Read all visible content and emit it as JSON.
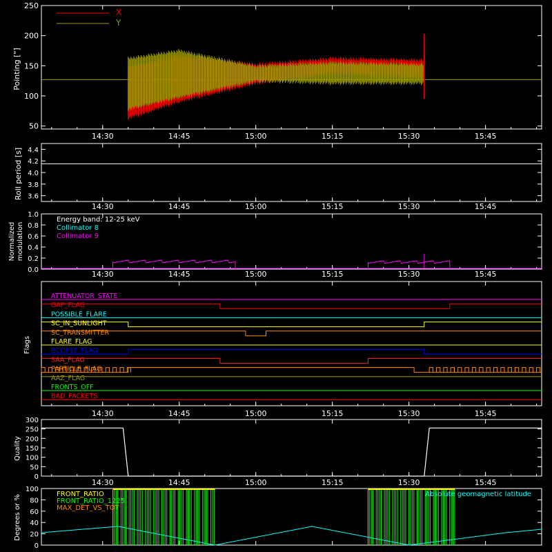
{
  "colors": {
    "axis": "#ffffff",
    "red": "#ff0000",
    "olive": "#999900",
    "magenta": "#ff00ff",
    "cyan": "#00ffff",
    "yellow": "#ffff00",
    "orange": "#ff8800",
    "green": "#00ff00",
    "blue": "#0000ff",
    "brightred": "#ff2222"
  },
  "time_axis": {
    "range": [
      "14:18",
      "15:56"
    ],
    "ticks": [
      "14:30",
      "14:45",
      "15:00",
      "15:15",
      "15:30",
      "15:45"
    ]
  },
  "chart_data": [
    {
      "type": "line",
      "id": "pointing",
      "ylabel": "Pointing [\"]",
      "ylim": [
        45,
        250
      ],
      "yticks": [
        "50",
        "100",
        "150",
        "200",
        "250"
      ],
      "legend": [
        {
          "name": "X",
          "color": "#ff0000"
        },
        {
          "name": "Y",
          "color": "#999900"
        }
      ],
      "baseline": 127,
      "series": [
        {
          "name": "X",
          "color": "#ff0000",
          "x": [
            "14:35",
            "14:45",
            "15:00",
            "15:15",
            "15:33"
          ],
          "upper": [
            150,
            170,
            155,
            165,
            162
          ],
          "lower": [
            60,
            88,
            118,
            135,
            128
          ]
        },
        {
          "name": "Y",
          "color": "#999900",
          "x": [
            "14:35",
            "14:45",
            "15:00",
            "15:15",
            "15:33"
          ],
          "upper": [
            165,
            178,
            152,
            158,
            155
          ],
          "lower": [
            75,
            95,
            122,
            118,
            118
          ]
        }
      ],
      "spike": {
        "time": "15:33",
        "low": 95,
        "high": 203
      }
    },
    {
      "type": "line",
      "id": "roll-period",
      "ylabel": "Roll period [s]",
      "ylim": [
        3.5,
        4.5
      ],
      "yticks": [
        "3.6",
        "3.8",
        "4.0",
        "4.2",
        "4.4"
      ],
      "series": [
        {
          "name": "roll",
          "color": "#ffffff",
          "x": [
            "14:18",
            "15:56"
          ],
          "y": [
            4.15,
            4.15
          ]
        }
      ]
    },
    {
      "type": "line",
      "id": "modulation",
      "ylabel": [
        "Normalized",
        "modulation"
      ],
      "ylim": [
        0,
        1.0
      ],
      "yticks": [
        "0.0",
        "0.2",
        "0.4",
        "0.6",
        "0.8",
        "1.0"
      ],
      "annotations": [
        {
          "text": "Energy band: 12-25 keV",
          "color": "#ffffff"
        },
        {
          "text": "Collimator 8",
          "color": "#00ffff"
        },
        {
          "text": "Collimator 9",
          "color": "#ff00ff"
        }
      ],
      "series": [
        {
          "name": "Collimator 9",
          "color": "#ff00ff",
          "segments": [
            {
              "start": "14:32",
              "end": "14:56",
              "level": 0.14
            },
            {
              "start": "15:22",
              "end": "15:38",
              "level": 0.13
            }
          ]
        }
      ]
    },
    {
      "type": "line",
      "id": "flags",
      "ylabel": "Flags",
      "flags": [
        {
          "name": "ATTENUATOR_STATE",
          "color": "#ff00ff",
          "steps": [
            [
              "14:18",
              0
            ],
            [
              "15:56",
              0
            ]
          ]
        },
        {
          "name": "GAP_FLAG",
          "color": "#ff0000",
          "steps": [
            [
              "14:18",
              1
            ],
            [
              "14:53",
              1
            ],
            [
              "14:53",
              0
            ],
            [
              "15:38",
              0
            ],
            [
              "15:38",
              1
            ],
            [
              "15:56",
              1
            ]
          ]
        },
        {
          "name": "POSSIBLE_FLARE",
          "color": "#00ffff",
          "steps": [
            [
              "14:18",
              0
            ],
            [
              "15:56",
              0
            ]
          ]
        },
        {
          "name": "SC_IN_SUNLIGHT",
          "color": "#ffff00",
          "steps": [
            [
              "14:18",
              1
            ],
            [
              "14:35",
              1
            ],
            [
              "14:35",
              0
            ],
            [
              "15:33",
              0
            ],
            [
              "15:33",
              1
            ],
            [
              "15:56",
              1
            ]
          ]
        },
        {
          "name": "SC_TRANSMITTER",
          "color": "#ff8800",
          "steps": [
            [
              "14:18",
              1
            ],
            [
              "14:58",
              1
            ],
            [
              "14:58",
              0
            ],
            [
              "15:02",
              0
            ],
            [
              "15:02",
              1
            ],
            [
              "15:56",
              1
            ]
          ]
        },
        {
          "name": "FLARE_FLAG",
          "color": "#ffff00",
          "steps": [
            [
              "14:18",
              0
            ],
            [
              "15:56",
              0
            ]
          ]
        },
        {
          "name": "ECLIPSE_FLAG",
          "color": "#0000ff",
          "steps": [
            [
              "14:18",
              0
            ],
            [
              "14:35",
              0
            ],
            [
              "14:35",
              1
            ],
            [
              "15:33",
              1
            ],
            [
              "15:33",
              0
            ],
            [
              "15:56",
              0
            ]
          ]
        },
        {
          "name": "SAA_FLAG",
          "color": "#ff2222",
          "steps": [
            [
              "14:18",
              1
            ],
            [
              "14:53",
              1
            ],
            [
              "14:53",
              0
            ],
            [
              "15:22",
              0
            ],
            [
              "15:22",
              1
            ],
            [
              "15:56",
              1
            ]
          ]
        },
        {
          "name": "PARTICLE_FLAG",
          "color": "#ff8800",
          "steps": [
            [
              "14:18",
              0
            ],
            [
              "14:35",
              0
            ],
            [
              "14:35",
              1
            ],
            [
              "15:31",
              1
            ],
            [
              "15:31",
              0
            ],
            [
              "15:56",
              0
            ]
          ]
        },
        {
          "name": "AAZ_FLAG",
          "color": "#999900",
          "steps": [
            [
              "14:18",
              1
            ],
            [
              "15:56",
              1
            ]
          ]
        },
        {
          "name": "FRONTS_OFF",
          "color": "#00ff00",
          "steps": [
            [
              "14:18",
              0
            ],
            [
              "15:56",
              0
            ]
          ]
        },
        {
          "name": "BAD_PACKETS",
          "color": "#ff0000",
          "steps": [
            [
              "14:18",
              0
            ],
            [
              "15:56",
              0
            ]
          ]
        }
      ]
    },
    {
      "type": "line",
      "id": "quality",
      "ylabel": "Quality",
      "ylim": [
        0,
        300
      ],
      "yticks": [
        "0",
        "50",
        "100",
        "150",
        "200",
        "250",
        "300"
      ],
      "series": [
        {
          "name": "quality",
          "color": "#ffffff",
          "x": [
            "14:18",
            "14:34",
            "14:35",
            "15:33",
            "15:34",
            "15:56"
          ],
          "y": [
            255,
            255,
            0,
            0,
            255,
            255
          ]
        }
      ]
    },
    {
      "type": "line",
      "id": "ratios",
      "ylabel": "Degrees or %",
      "ylim": [
        0,
        100
      ],
      "yticks": [
        "0",
        "20",
        "40",
        "60",
        "80",
        "100"
      ],
      "legend": [
        {
          "name": "FRONT_RATIO",
          "color": "#ffff00"
        },
        {
          "name": "FRONT_RATIO_1225",
          "color": "#00ff00"
        },
        {
          "name": "MAX_DET_VS_TOT",
          "color": "#ff8800"
        }
      ],
      "annotation": {
        "text": "Absolute geomagnetic latitude",
        "color": "#00ffff"
      },
      "latitude": {
        "x": [
          "14:18",
          "14:33",
          "14:52",
          "15:11",
          "15:30",
          "15:49",
          "15:56"
        ],
        "y": [
          22,
          33,
          0,
          33,
          0,
          22,
          28
        ]
      },
      "ratio_bursts": [
        [
          "14:32",
          "14:52"
        ],
        [
          "15:22",
          "15:39"
        ]
      ]
    }
  ]
}
